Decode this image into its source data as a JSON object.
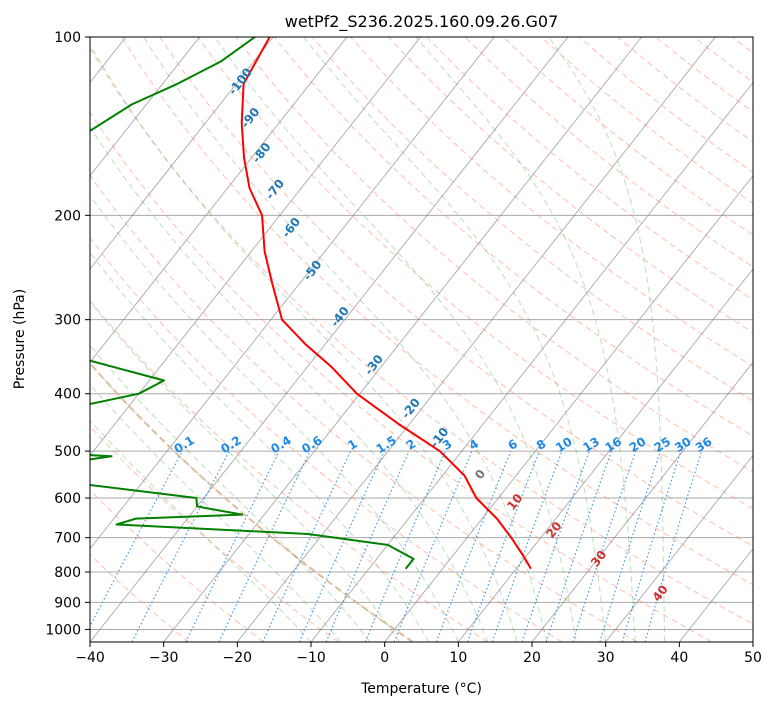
{
  "chart_data": {
    "type": "line",
    "subtype": "skew-t log-p",
    "title": "wetPf2_S236.2025.160.09.26.G07",
    "xlabel": "Temperature (°C)",
    "ylabel": "Pressure (hPa)",
    "xlim": [
      -40,
      50
    ],
    "ylim": [
      1050,
      100
    ],
    "y_scale": "log",
    "grid": true,
    "x_ticks": [
      "−40",
      "−30",
      "−20",
      "−10",
      "0",
      "10",
      "20",
      "30",
      "40",
      "50"
    ],
    "y_ticks": [
      "100",
      "200",
      "300",
      "400",
      "500",
      "600",
      "700",
      "800",
      "900",
      "1000"
    ],
    "dry_adiabat_labels": [
      "-100",
      "-90",
      "-80",
      "-70",
      "-60",
      "-50",
      "-40",
      "-30",
      "-20",
      "-10",
      "0",
      "10",
      "20",
      "30",
      "40"
    ],
    "mixing_ratio_labels": [
      "0.1",
      "0.2",
      "0.4",
      "0.6",
      "1",
      "1.5",
      "2",
      "3",
      "4",
      "6",
      "8",
      "10",
      "13",
      "16",
      "20",
      "25",
      "30",
      "36"
    ],
    "colors": {
      "temperature": "#ff0000",
      "dewpoint": "#008000",
      "dry_adiabat": "#ff7043",
      "moist_adiabat": "#43a047",
      "mixing_ratio": "#1e88e5",
      "isotherm": "#777777",
      "isobar": "#aaaaaa",
      "freezing_adiabat": "#d2b48c",
      "neg_label": "#1f77b4",
      "zero_label": "#777777",
      "pos_label": "#d32f2f"
    },
    "series": [
      {
        "role": "temperature",
        "points": [
          [
            100,
            -80.5
          ],
          [
            120,
            -79.0
          ],
          [
            140,
            -75.0
          ],
          [
            160,
            -71.0
          ],
          [
            180,
            -67.0
          ],
          [
            200,
            -62.4
          ],
          [
            230,
            -58.2
          ],
          [
            260,
            -53.8
          ],
          [
            300,
            -48.5
          ],
          [
            330,
            -42.7
          ],
          [
            360,
            -36.8
          ],
          [
            400,
            -30.4
          ],
          [
            450,
            -21.5
          ],
          [
            500,
            -13.0
          ],
          [
            550,
            -7.0
          ],
          [
            600,
            -3.0
          ],
          [
            650,
            2.0
          ],
          [
            700,
            6.0
          ],
          [
            750,
            9.5
          ],
          [
            790,
            12.0
          ]
        ]
      },
      {
        "role": "dewpoint",
        "points": [
          [
            100,
            -82.5
          ],
          [
            110,
            -84.5
          ],
          [
            120,
            -88.0
          ],
          [
            130,
            -92.0
          ],
          [
            145,
            -95.0
          ],
          [
            160,
            -101.0
          ],
          [
            180,
            -103.0
          ],
          [
            195,
            -104.0
          ],
          [
            205,
            -115.0
          ],
          [
            230,
            -119.0
          ],
          [
            250,
            -120.0
          ],
          [
            280,
            -117.0
          ],
          [
            300,
            -115.0
          ],
          [
            320,
            -113.0
          ],
          [
            350,
            -71.0
          ],
          [
            380,
            -58.0
          ],
          [
            400,
            -60.0
          ],
          [
            430,
            -70.0
          ],
          [
            460,
            -90.0
          ],
          [
            470,
            -101.0
          ],
          [
            480,
            -102.0
          ],
          [
            510,
            -57.0
          ],
          [
            530,
            -65.0
          ],
          [
            545,
            -76.0
          ],
          [
            570,
            -57.0
          ],
          [
            600,
            -41.0
          ],
          [
            620,
            -40.0
          ],
          [
            640,
            -33.0
          ],
          [
            650,
            -47.0
          ],
          [
            665,
            -49.0
          ],
          [
            690,
            -22.0
          ],
          [
            720,
            -10.0
          ],
          [
            760,
            -5.0
          ],
          [
            790,
            -5.0
          ]
        ]
      }
    ]
  }
}
